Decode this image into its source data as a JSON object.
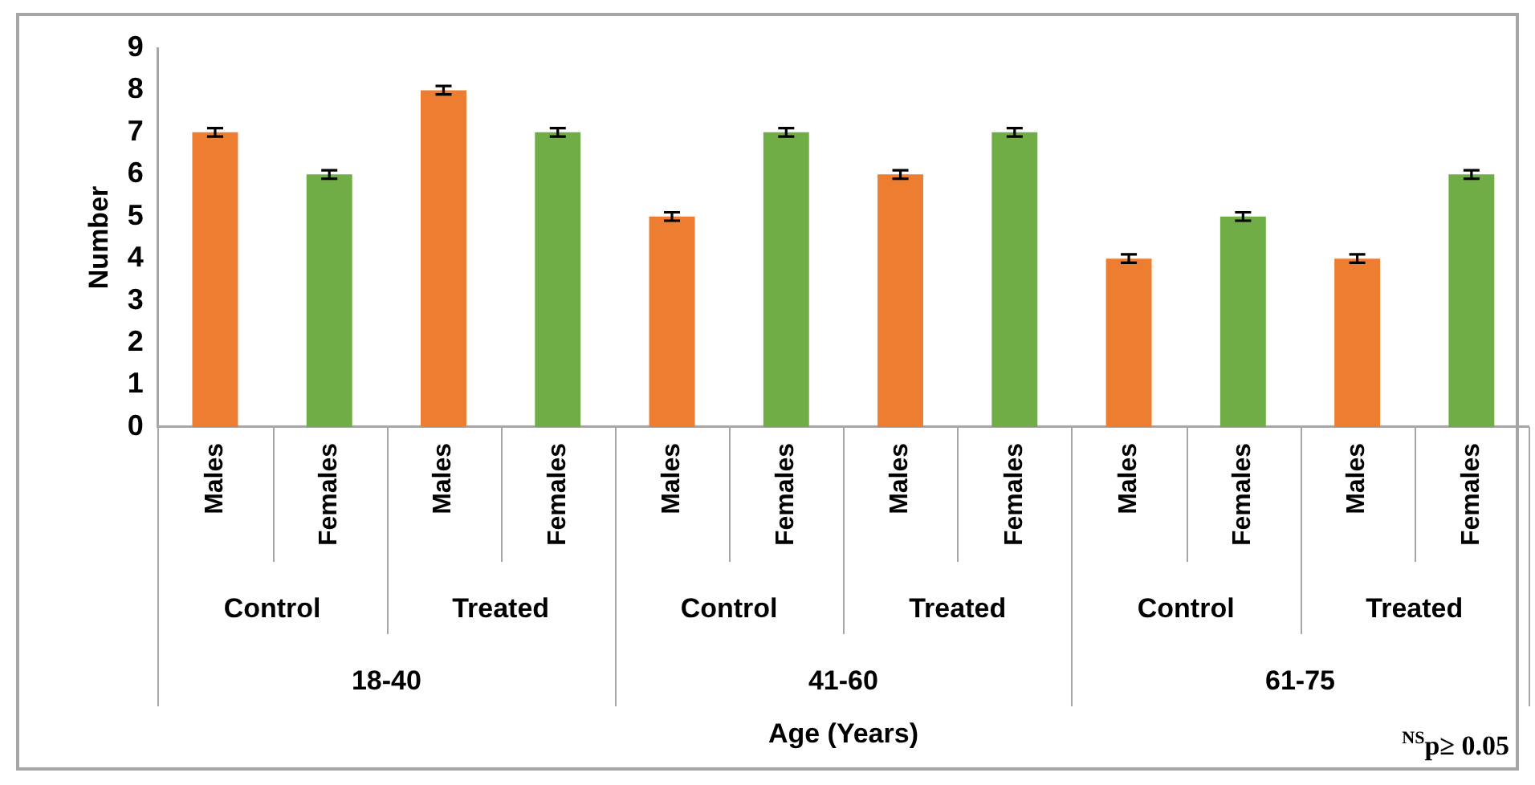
{
  "chart_data": {
    "type": "bar",
    "ylabel": "Number",
    "categories": [
      "Males",
      "Females",
      "Males",
      "Females",
      "Males",
      "Females",
      "Males",
      "Females",
      "Males",
      "Females",
      "Males",
      "Females"
    ],
    "values": [
      7,
      6,
      8,
      7,
      5,
      7,
      6,
      7,
      4,
      5,
      4,
      6
    ],
    "colors": [
      "#ed7d31",
      "#70ad47",
      "#ed7d31",
      "#70ad47",
      "#ed7d31",
      "#70ad47",
      "#ed7d31",
      "#70ad47",
      "#ed7d31",
      "#70ad47",
      "#ed7d31",
      "#70ad47"
    ],
    "errors": [
      0.1,
      0.1,
      0.1,
      0.1,
      0.1,
      0.1,
      0.1,
      0.1,
      0.1,
      0.1,
      0.1,
      0.1
    ],
    "ylim": [
      0,
      9
    ],
    "yticks": [
      0,
      1,
      2,
      3,
      4,
      5,
      6,
      7,
      8,
      9
    ],
    "grid": false,
    "legend": false,
    "annotations": [
      "Control",
      "Treated",
      "Control",
      "Treated",
      "Control",
      "Treated",
      "18-40",
      "41-60",
      "61-75",
      "Age (Years)",
      "$^{NS}$p≥ 0.05"
    ]
  }
}
